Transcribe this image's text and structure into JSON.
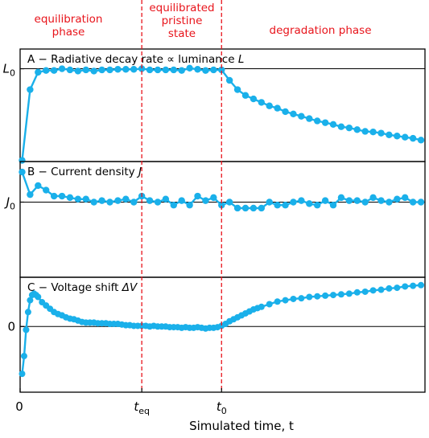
{
  "chart_data": {
    "type": "line",
    "xlabel": "Simulated time, t",
    "x_tick_labels": {
      "origin": "0",
      "t_eq": {
        "main": "t",
        "sub": "eq"
      },
      "t0": {
        "main": "t",
        "sub": "0"
      }
    },
    "x_markers": {
      "t_eq": 30,
      "t0": 50
    },
    "xlim": [
      -0.5,
      101
    ],
    "phase_labels": [
      {
        "id": "equilibration",
        "lines": [
          "equilibration",
          "phase"
        ]
      },
      {
        "id": "pristine",
        "lines": [
          "equilibrated",
          "pristine",
          "state"
        ]
      },
      {
        "id": "degradation",
        "lines": [
          "degradation phase"
        ]
      }
    ],
    "colors": {
      "series": "#1ab0ea",
      "markers": "#e8141b",
      "reference": "#000000"
    },
    "panels": [
      {
        "id": "A",
        "title": "A − Radiative decay rate ∝ luminance L",
        "title_parts": [
          "A − Radiative decay rate ∝ luminance ",
          "L"
        ],
        "ytick_label": {
          "main": "L",
          "sub": "0"
        },
        "reference_value": 1.0,
        "ylim": [
          0.2,
          1.17
        ],
        "x": [
          0,
          2,
          4,
          6,
          8,
          10,
          12,
          14,
          16,
          18,
          20,
          22,
          24,
          26,
          28,
          30,
          32,
          34,
          36,
          38,
          40,
          42,
          44,
          46,
          48,
          50,
          52,
          54,
          56,
          58,
          60,
          62,
          64,
          66,
          68,
          70,
          72,
          74,
          76,
          78,
          80,
          82,
          84,
          86,
          88,
          90,
          92,
          94,
          96,
          98,
          100
        ],
        "y": [
          0.21,
          0.82,
          0.97,
          0.985,
          0.985,
          1.0,
          0.99,
          0.98,
          0.99,
          0.98,
          0.99,
          0.99,
          0.995,
          0.995,
          0.995,
          1.0,
          0.99,
          0.99,
          0.99,
          0.99,
          0.985,
          1.005,
          0.995,
          0.985,
          0.99,
          0.99,
          0.9,
          0.82,
          0.77,
          0.74,
          0.71,
          0.68,
          0.66,
          0.63,
          0.61,
          0.59,
          0.57,
          0.55,
          0.535,
          0.52,
          0.5,
          0.49,
          0.475,
          0.46,
          0.455,
          0.445,
          0.43,
          0.42,
          0.41,
          0.4,
          0.385
        ]
      },
      {
        "id": "B",
        "title": "B − Current density J",
        "title_parts": [
          "B − Current density ",
          "J"
        ],
        "ytick_label": {
          "main": "J",
          "sub": "0"
        },
        "reference_value": 1.0,
        "ylim": [
          0.5,
          1.27
        ],
        "x": [
          0,
          2,
          4,
          6,
          8,
          10,
          12,
          14,
          16,
          18,
          20,
          22,
          24,
          26,
          28,
          30,
          32,
          34,
          36,
          38,
          40,
          42,
          44,
          46,
          48,
          50,
          52,
          54,
          56,
          58,
          60,
          62,
          64,
          66,
          68,
          70,
          72,
          74,
          76,
          78,
          80,
          82,
          84,
          86,
          88,
          90,
          92,
          94,
          96,
          98,
          100
        ],
        "y": [
          1.2,
          1.05,
          1.11,
          1.08,
          1.04,
          1.04,
          1.03,
          1.02,
          1.02,
          1.0,
          1.01,
          1.0,
          1.01,
          1.02,
          1.0,
          1.04,
          1.01,
          1.0,
          1.02,
          0.98,
          1.01,
          0.98,
          1.04,
          1.01,
          1.03,
          0.98,
          1.0,
          0.96,
          0.96,
          0.96,
          0.96,
          1.0,
          0.98,
          0.98,
          1.0,
          1.01,
          0.99,
          0.98,
          1.01,
          0.98,
          1.03,
          1.01,
          1.01,
          1.0,
          1.03,
          1.01,
          1.0,
          1.02,
          1.03,
          1.0,
          1.0
        ]
      },
      {
        "id": "C",
        "title": "C − Voltage shift ΔV",
        "title_parts": [
          "C − Voltage shift ",
          "ΔV"
        ],
        "ytick_label": {
          "main": "0",
          "sub": ""
        },
        "reference_value": 0.0,
        "ylim": [
          -1.0,
          0.75
        ],
        "x": [
          0,
          0.5,
          1,
          1.5,
          2,
          2.5,
          3,
          3.5,
          4,
          5,
          6,
          7,
          8,
          9,
          10,
          11,
          12,
          13,
          14,
          15,
          16,
          17,
          18,
          19,
          20,
          21,
          22,
          23,
          24,
          25,
          26,
          27,
          28,
          29,
          30,
          31,
          32,
          33,
          34,
          35,
          36,
          37,
          38,
          39,
          40,
          41,
          42,
          43,
          44,
          45,
          46,
          47,
          48,
          49,
          50,
          51,
          52,
          53,
          54,
          55,
          56,
          57,
          58,
          59,
          60,
          62,
          64,
          66,
          68,
          70,
          72,
          74,
          76,
          78,
          80,
          82,
          84,
          86,
          88,
          90,
          92,
          94,
          96,
          98,
          100
        ],
        "y": [
          -0.72,
          -0.45,
          -0.05,
          0.22,
          0.4,
          0.48,
          0.5,
          0.48,
          0.45,
          0.37,
          0.32,
          0.27,
          0.22,
          0.19,
          0.17,
          0.14,
          0.12,
          0.11,
          0.09,
          0.07,
          0.06,
          0.06,
          0.06,
          0.05,
          0.05,
          0.05,
          0.04,
          0.04,
          0.04,
          0.03,
          0.02,
          0.02,
          0.01,
          0.01,
          0.01,
          0.01,
          0.0,
          0.01,
          0.0,
          0.0,
          0.0,
          -0.01,
          -0.01,
          -0.01,
          -0.02,
          -0.01,
          -0.02,
          -0.02,
          -0.01,
          -0.02,
          -0.03,
          -0.02,
          -0.02,
          -0.01,
          0.01,
          0.04,
          0.08,
          0.11,
          0.14,
          0.17,
          0.2,
          0.23,
          0.26,
          0.28,
          0.3,
          0.34,
          0.38,
          0.4,
          0.42,
          0.43,
          0.45,
          0.46,
          0.47,
          0.48,
          0.49,
          0.5,
          0.52,
          0.53,
          0.55,
          0.56,
          0.58,
          0.59,
          0.61,
          0.62,
          0.63
        ]
      }
    ]
  }
}
